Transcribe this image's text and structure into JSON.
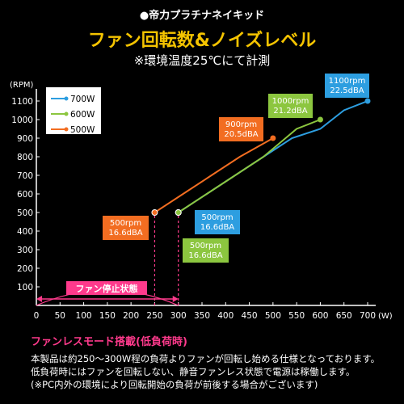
{
  "header": {
    "product": "●帝力プラチナネイキッド",
    "title": "ファン回転数&ノイズレベル",
    "subtitle": "※環境温度25℃にて計測"
  },
  "chart_data": {
    "type": "line",
    "title": "ファン回転数&ノイズレベル",
    "ylabel": "(RPM)",
    "xlabel": "(W)",
    "xlim": [
      0,
      700
    ],
    "ylim": [
      0,
      1100
    ],
    "x_ticks": [
      0,
      50,
      100,
      150,
      200,
      250,
      300,
      350,
      400,
      450,
      500,
      550,
      600,
      650,
      700
    ],
    "y_ticks": [
      100,
      200,
      300,
      400,
      500,
      600,
      700,
      800,
      900,
      1000,
      1100
    ],
    "grid": false,
    "legend_position": "top-left",
    "series": [
      {
        "name": "700W",
        "color": "#2d9ee0",
        "points": [
          [
            300,
            500
          ],
          [
            360,
            600
          ],
          [
            420,
            700
          ],
          [
            480,
            800
          ],
          [
            540,
            900
          ],
          [
            600,
            950
          ],
          [
            650,
            1050
          ],
          [
            700,
            1100
          ]
        ]
      },
      {
        "name": "600W",
        "color": "#8cc63f",
        "points": [
          [
            300,
            500
          ],
          [
            360,
            600
          ],
          [
            420,
            700
          ],
          [
            480,
            800
          ],
          [
            550,
            950
          ],
          [
            600,
            1000
          ]
        ]
      },
      {
        "name": "500W",
        "color": "#f26d21",
        "points": [
          [
            250,
            500
          ],
          [
            310,
            600
          ],
          [
            370,
            700
          ],
          [
            430,
            800
          ],
          [
            500,
            900
          ]
        ]
      }
    ],
    "fanless_zone": {
      "label": "ファン停止状態",
      "from": 0,
      "to": 300,
      "color": "#ff3a8c"
    },
    "annotations": [
      {
        "text": "1100rpm\n22.5dBA",
        "color": "#2d9ee0",
        "x": 700,
        "y": 1100
      },
      {
        "text": "1000rpm\n21.2dBA",
        "color": "#8cc63f",
        "x": 600,
        "y": 1000
      },
      {
        "text": "900rpm\n20.5dBA",
        "color": "#f26d21",
        "x": 500,
        "y": 900
      },
      {
        "text": "500rpm\n16.6dBA",
        "color": "#f26d21",
        "x": 250,
        "y": 500
      },
      {
        "text": "500rpm\n16.6dBA",
        "color": "#2d9ee0",
        "x": 300,
        "y": 500
      },
      {
        "text": "500rpm\n16.6dBA",
        "color": "#8cc63f",
        "x": 300,
        "y": 500
      }
    ]
  },
  "notes": {
    "heading": "ファンレスモード搭載(低負荷時)",
    "lines": [
      "本製品は約250〜300W程の負荷よりファンが回転し始める仕様となっております。",
      "低負荷時にはファンを回転しない、静音ファンレス状態で電源は稼働します。",
      "(※PC内外の環境により回転開始の負荷が前後する場合がございます)"
    ]
  }
}
